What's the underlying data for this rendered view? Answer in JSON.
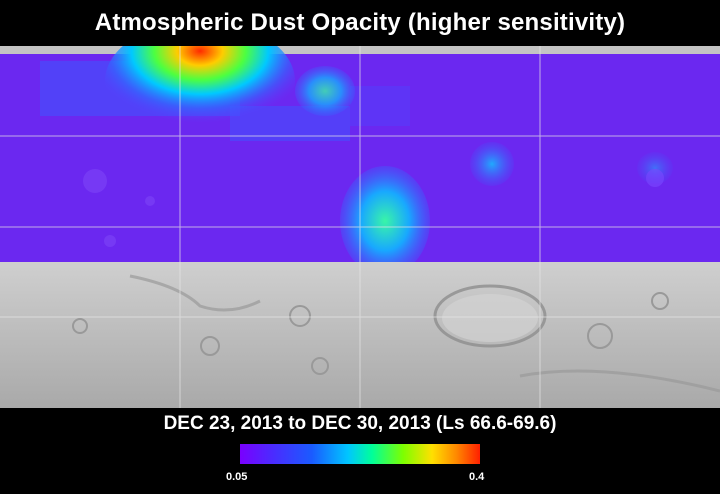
{
  "title": "Atmospheric Dust Opacity (higher sensitivity)",
  "date_range": "DEC 23, 2013 to DEC 30, 2013 (Ls 66.6-69.6)",
  "colorbar": {
    "min_label": "0.05",
    "max_label": "0.4",
    "colors": [
      "#7a00ff",
      "#4a2cff",
      "#1a5bff",
      "#00c6ff",
      "#00ff9a",
      "#7dff00",
      "#ffe000",
      "#ff8a00",
      "#ff2000"
    ]
  },
  "map": {
    "projection": "cylindrical global Mars",
    "overlay_color_base": "#6b28f0",
    "basemap_color": "#bdbdbd",
    "grid": true
  }
}
